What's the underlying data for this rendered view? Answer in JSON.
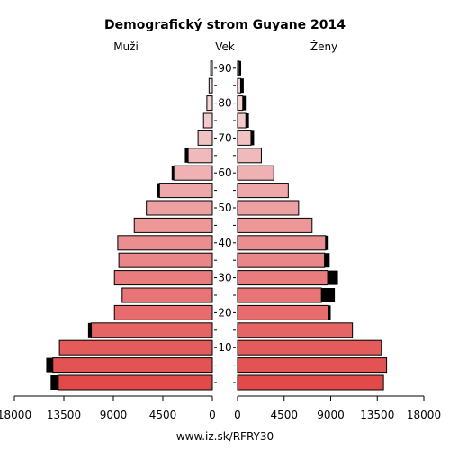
{
  "chart_data": {
    "type": "bar",
    "title": "Demografický strom Guyane 2014",
    "left_label": "Muži",
    "center_label": "Vek",
    "right_label": "Ženy",
    "footer": "www.iz.sk/RFRY30",
    "x_ticks_left": [
      "18000",
      "13500",
      "9000",
      "4500",
      "0"
    ],
    "x_ticks_right": [
      "0",
      "4500",
      "9000",
      "13500",
      "18000"
    ],
    "x_tick_values": [
      18000,
      13500,
      9000,
      4500,
      0
    ],
    "xlim": [
      0,
      18000
    ],
    "age_ticks": [
      {
        "label": "10",
        "group": 2
      },
      {
        "label": "20",
        "group": 4
      },
      {
        "label": "30",
        "group": 6
      },
      {
        "label": "40",
        "group": 8
      },
      {
        "label": "50",
        "group": 10
      },
      {
        "label": "60",
        "group": 12
      },
      {
        "label": "70",
        "group": 14
      },
      {
        "label": "80",
        "group": 16
      },
      {
        "label": "90",
        "group": 18
      }
    ],
    "age_groups": [
      "0-4",
      "5-9",
      "10-14",
      "15-19",
      "20-24",
      "25-29",
      "30-34",
      "35-39",
      "40-44",
      "45-49",
      "50-54",
      "55-59",
      "60-64",
      "65-69",
      "70-74",
      "75-79",
      "80-84",
      "85-89",
      "90+"
    ],
    "series": [
      {
        "name": "Muži",
        "values": [
          14000,
          14500,
          13900,
          11000,
          8900,
          8200,
          8900,
          8500,
          8600,
          7100,
          6000,
          4800,
          3500,
          2200,
          1300,
          800,
          500,
          300,
          150
        ],
        "extra": [
          700,
          600,
          0,
          300,
          0,
          0,
          0,
          0,
          0,
          0,
          0,
          200,
          200,
          300,
          0,
          0,
          0,
          0,
          0
        ]
      },
      {
        "name": "Ženy",
        "values": [
          14100,
          14400,
          13900,
          11100,
          8800,
          8100,
          8700,
          8400,
          8500,
          7200,
          5900,
          4900,
          3500,
          2300,
          1300,
          800,
          500,
          300,
          150
        ],
        "extra": [
          0,
          0,
          0,
          0,
          200,
          1300,
          1000,
          500,
          300,
          0,
          0,
          0,
          0,
          0,
          300,
          300,
          300,
          300,
          200
        ]
      }
    ]
  }
}
